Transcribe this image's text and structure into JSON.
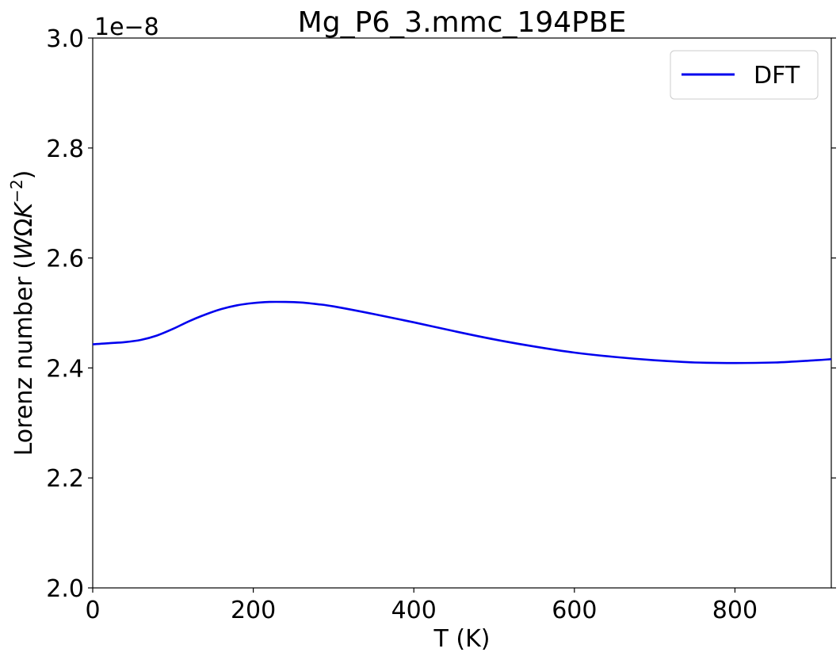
{
  "chart_data": {
    "type": "line",
    "title": "Mg_P6_3.mmc_194PBE",
    "xlabel": "T (K)",
    "ylabel_text": "Lorenz number (",
    "ylabel_math_W": "W",
    "ylabel_math_omega": "Ω",
    "ylabel_math_K": "K",
    "ylabel_math_exp": "−2",
    "ylabel_close": ")",
    "offset_text": "1e−8",
    "xlim": [
      0,
      920
    ],
    "ylim": [
      2.0,
      3.0
    ],
    "xticks": [
      0,
      200,
      400,
      600,
      800
    ],
    "xtick_labels": [
      "0",
      "200",
      "400",
      "600",
      "800"
    ],
    "yticks": [
      2.0,
      2.2,
      2.4,
      2.6,
      2.8,
      3.0
    ],
    "ytick_labels": [
      "2.0",
      "2.2",
      "2.4",
      "2.6",
      "2.8",
      "3.0"
    ],
    "grid": false,
    "legend_placement": "top-right",
    "series": [
      {
        "name": "DFT",
        "color": "#0000ee",
        "x": [
          0,
          20,
          40,
          60,
          80,
          100,
          120,
          140,
          160,
          180,
          200,
          220,
          240,
          260,
          280,
          300,
          350,
          400,
          450,
          500,
          550,
          600,
          650,
          700,
          750,
          800,
          850,
          900,
          920
        ],
        "y": [
          2.443,
          2.445,
          2.447,
          2.451,
          2.459,
          2.471,
          2.485,
          2.497,
          2.507,
          2.514,
          2.518,
          2.52,
          2.52,
          2.519,
          2.516,
          2.512,
          2.498,
          2.483,
          2.467,
          2.452,
          2.439,
          2.428,
          2.42,
          2.414,
          2.41,
          2.409,
          2.41,
          2.414,
          2.416
        ]
      }
    ]
  }
}
